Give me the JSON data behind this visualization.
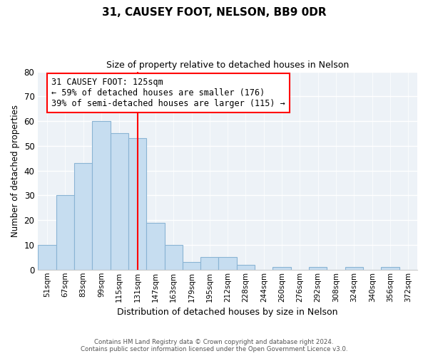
{
  "title": "31, CAUSEY FOOT, NELSON, BB9 0DR",
  "subtitle": "Size of property relative to detached houses in Nelson",
  "xlabel": "Distribution of detached houses by size in Nelson",
  "ylabel": "Number of detached properties",
  "footer_line1": "Contains HM Land Registry data © Crown copyright and database right 2024.",
  "footer_line2": "Contains public sector information licensed under the Open Government Licence v3.0.",
  "bin_labels": [
    "51sqm",
    "67sqm",
    "83sqm",
    "99sqm",
    "115sqm",
    "131sqm",
    "147sqm",
    "163sqm",
    "179sqm",
    "195sqm",
    "212sqm",
    "228sqm",
    "244sqm",
    "260sqm",
    "276sqm",
    "292sqm",
    "308sqm",
    "324sqm",
    "340sqm",
    "356sqm",
    "372sqm"
  ],
  "bar_heights": [
    10,
    30,
    43,
    60,
    55,
    53,
    19,
    10,
    3,
    5,
    5,
    2,
    0,
    1,
    0,
    1,
    0,
    1,
    0,
    1,
    0
  ],
  "bar_color": "#c6ddf0",
  "bar_edge_color": "#8ab4d4",
  "ylim": [
    0,
    80
  ],
  "yticks": [
    0,
    10,
    20,
    30,
    40,
    50,
    60,
    70,
    80
  ],
  "vline_x": 5.0,
  "vline_color": "red",
  "annotation_text": "31 CAUSEY FOOT: 125sqm\n← 59% of detached houses are smaller (176)\n39% of semi-detached houses are larger (115) →",
  "background_color": "#edf2f7"
}
